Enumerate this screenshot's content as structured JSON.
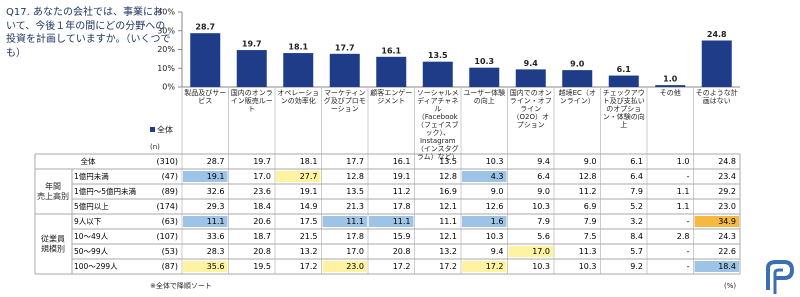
{
  "question": "Q17. あなたの会社では、事業において、今後１年の間にどの分野への投資を計画していますか。（いくつでも）",
  "chart_data": {
    "type": "bar",
    "categories": [
      "製品及びサービス",
      "国内のオンライン販売ルート",
      "オペレーションの効率化",
      "マーケティング及びプロモーション",
      "顧客エンゲージメント",
      "ソーシャルメディアチャネル（Facebook（フェイスブック）、Instagram（インスタグラム）など）",
      "ユーザー体験の向上",
      "国内でのオンライン・オフライン（O2O）オプション",
      "越境EC（オンライン）",
      "チェックアウト及び支払いのオプション・体験の向上",
      "その他",
      "そのような計画はない"
    ],
    "series": [
      {
        "name": "全体",
        "color": "#1f3c88",
        "values": [
          28.7,
          19.7,
          18.1,
          17.7,
          16.1,
          13.5,
          10.3,
          9.4,
          9.0,
          6.1,
          1.0,
          24.8
        ],
        "value_labels": [
          "28.7",
          "19.7",
          "18.1",
          "17.7",
          "16.1",
          "13.5",
          "10.3",
          "9.4",
          "9.0",
          "6.1",
          "1.0",
          "24.8"
        ]
      }
    ],
    "ylim": [
      0,
      40
    ],
    "yticks": [
      {
        "value": 0,
        "label": "0%"
      },
      {
        "value": 10,
        "label": "10%"
      },
      {
        "value": 20,
        "label": "20%"
      },
      {
        "value": 30,
        "label": "30%"
      },
      {
        "value": 40,
        "label": "40%"
      }
    ]
  },
  "table": {
    "n_header": "(n)",
    "groups": [
      {
        "label": [
          "年間",
          "売上高別"
        ],
        "rows": [
          1,
          2,
          3
        ]
      },
      {
        "label": [
          "従業員",
          "規模別"
        ],
        "rows": [
          4,
          5,
          6,
          7
        ]
      }
    ],
    "rows": [
      {
        "label": "全体",
        "n": "(310)",
        "cells": [
          "28.7",
          "19.7",
          "18.1",
          "17.7",
          "16.1",
          "13.5",
          "10.3",
          "9.4",
          "9.0",
          "6.1",
          "1.0",
          "24.8"
        ]
      },
      {
        "label": "1億円未満",
        "n": "(47)",
        "cells": [
          "19.1",
          "17.0",
          "27.7",
          "12.8",
          "19.1",
          "12.8",
          "4.3",
          "6.4",
          "12.8",
          "6.4",
          "-",
          "23.4"
        ]
      },
      {
        "label": "1億円～5億円未満",
        "n": "(89)",
        "cells": [
          "32.6",
          "23.6",
          "19.1",
          "13.5",
          "11.2",
          "16.9",
          "9.0",
          "9.0",
          "11.2",
          "7.9",
          "1.1",
          "29.2"
        ]
      },
      {
        "label": "5億円以上",
        "n": "(174)",
        "cells": [
          "29.3",
          "18.4",
          "14.9",
          "21.3",
          "17.8",
          "12.1",
          "12.6",
          "10.3",
          "6.9",
          "5.2",
          "1.1",
          "23.0"
        ]
      },
      {
        "label": "9人以下",
        "n": "(63)",
        "cells": [
          "11.1",
          "20.6",
          "17.5",
          "11.1",
          "11.1",
          "11.1",
          "1.6",
          "7.9",
          "7.9",
          "3.2",
          "-",
          "34.9"
        ]
      },
      {
        "label": "10～49人",
        "n": "(107)",
        "cells": [
          "33.6",
          "18.7",
          "21.5",
          "17.8",
          "15.9",
          "12.1",
          "10.3",
          "5.6",
          "7.5",
          "8.4",
          "2.8",
          "24.3"
        ]
      },
      {
        "label": "50～99人",
        "n": "(53)",
        "cells": [
          "28.3",
          "20.8",
          "13.2",
          "17.0",
          "20.8",
          "13.2",
          "9.4",
          "17.0",
          "11.3",
          "5.7",
          "-",
          "22.6"
        ]
      },
      {
        "label": "100～299人",
        "n": "(87)",
        "cells": [
          "35.6",
          "19.5",
          "17.2",
          "23.0",
          "17.2",
          "17.2",
          "17.2",
          "10.3",
          "10.3",
          "9.2",
          "-",
          "18.4"
        ]
      }
    ],
    "highlights": [
      {
        "row": 1,
        "col": 0,
        "color": "#9dc3e6"
      },
      {
        "row": 1,
        "col": 2,
        "color": "#fff2a0"
      },
      {
        "row": 1,
        "col": 6,
        "color": "#9dc3e6"
      },
      {
        "row": 4,
        "col": 0,
        "color": "#9dc3e6"
      },
      {
        "row": 4,
        "col": 3,
        "color": "#9dc3e6"
      },
      {
        "row": 4,
        "col": 4,
        "color": "#9dc3e6"
      },
      {
        "row": 4,
        "col": 6,
        "color": "#9dc3e6"
      },
      {
        "row": 4,
        "col": 11,
        "color": "#f5b942"
      },
      {
        "row": 6,
        "col": 7,
        "color": "#fff2a0"
      },
      {
        "row": 7,
        "col": 0,
        "color": "#fff2a0"
      },
      {
        "row": 7,
        "col": 3,
        "color": "#fff2a0"
      },
      {
        "row": 7,
        "col": 6,
        "color": "#fff2a0"
      },
      {
        "row": 7,
        "col": 11,
        "color": "#9dc3e6"
      }
    ]
  },
  "footnote": "※全体で降順ソート",
  "unit": "(%)"
}
